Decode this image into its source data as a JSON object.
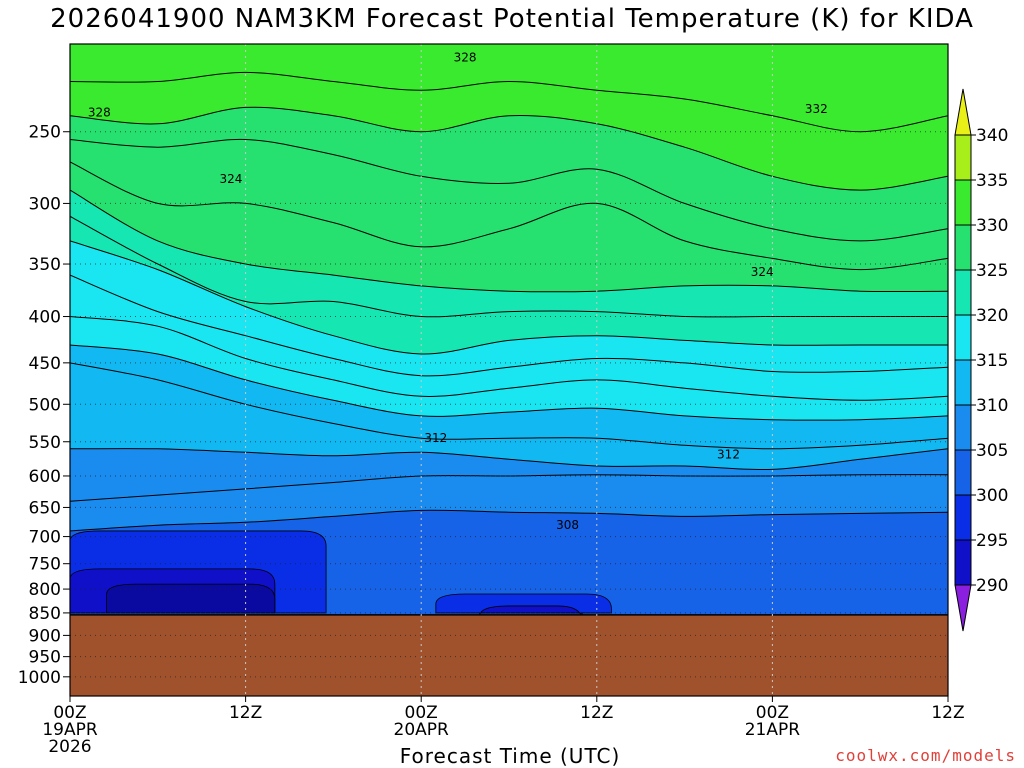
{
  "title": "2026041900 NAM3KM Forecast Potential Temperature (K) for KIDA",
  "credit": "coolwx.com/models",
  "chart_data": {
    "type": "heatmap",
    "title": "2026041900 NAM3KM Forecast Potential Temperature (K) for KIDA",
    "xlabel": "Forecast Time (UTC)",
    "ylabel": "",
    "x_range_hours": [
      0,
      60
    ],
    "y_range_hPa": [
      200,
      1050
    ],
    "y_scale": "log",
    "grid": true,
    "x_ticks": [
      {
        "hour": 0,
        "lines": [
          "00Z",
          "19APR",
          "2026"
        ]
      },
      {
        "hour": 12,
        "lines": [
          "12Z"
        ]
      },
      {
        "hour": 24,
        "lines": [
          "00Z",
          "20APR"
        ]
      },
      {
        "hour": 36,
        "lines": [
          "12Z"
        ]
      },
      {
        "hour": 48,
        "lines": [
          "00Z",
          "21APR"
        ]
      },
      {
        "hour": 60,
        "lines": [
          "12Z"
        ]
      }
    ],
    "y_ticks": [
      250,
      300,
      350,
      400,
      450,
      500,
      550,
      600,
      650,
      700,
      750,
      800,
      850,
      900,
      950,
      1000
    ],
    "colorbar": {
      "levels": [
        290,
        295,
        300,
        305,
        310,
        315,
        320,
        325,
        330,
        335,
        340
      ],
      "labels": [
        "290",
        "295",
        "300",
        "305",
        "310",
        "315",
        "320",
        "325",
        "330",
        "335",
        "340"
      ],
      "colors": [
        "#8a1fe0",
        "#1010c8",
        "#0a2ee6",
        "#1763e8",
        "#1a8cf0",
        "#12b8f2",
        "#19e6f0",
        "#16e6b2",
        "#26e070",
        "#3aea2e",
        "#a8ee1a",
        "#e8f018"
      ]
    },
    "terrain": {
      "pressure_hPa": 850,
      "color": "#a0522d"
    },
    "contour_labels": [
      {
        "text": "328",
        "hour": 27.0,
        "p": 207
      },
      {
        "text": "328",
        "hour": 2.0,
        "p": 238
      },
      {
        "text": "324",
        "hour": 11.0,
        "p": 282
      },
      {
        "text": "332",
        "hour": 51.0,
        "p": 236
      },
      {
        "text": "324",
        "hour": 47.3,
        "p": 357
      },
      {
        "text": "312",
        "hour": 25.0,
        "p": 545
      },
      {
        "text": "312",
        "hour": 45.0,
        "p": 568
      },
      {
        "text": "308",
        "hour": 34.0,
        "p": 680
      }
    ],
    "isentropes": [
      {
        "theta": 306,
        "pts": [
          [
            0,
            690
          ],
          [
            6,
            680
          ],
          [
            12,
            675
          ],
          [
            18,
            665
          ],
          [
            24,
            655
          ],
          [
            30,
            658
          ],
          [
            36,
            660
          ],
          [
            42,
            665
          ],
          [
            48,
            662
          ],
          [
            54,
            660
          ],
          [
            60,
            658
          ]
        ]
      },
      {
        "theta": 308,
        "pts": [
          [
            0,
            640
          ],
          [
            6,
            630
          ],
          [
            12,
            620
          ],
          [
            18,
            610
          ],
          [
            24,
            600
          ],
          [
            30,
            600
          ],
          [
            36,
            598
          ],
          [
            42,
            600
          ],
          [
            48,
            600
          ],
          [
            54,
            598
          ],
          [
            60,
            598
          ]
        ]
      },
      {
        "theta": 310,
        "pts": [
          [
            0,
            560
          ],
          [
            6,
            560
          ],
          [
            12,
            565
          ],
          [
            18,
            570
          ],
          [
            24,
            565
          ],
          [
            30,
            575
          ],
          [
            36,
            585
          ],
          [
            42,
            585
          ],
          [
            48,
            590
          ],
          [
            54,
            575
          ],
          [
            60,
            560
          ]
        ]
      },
      {
        "theta": 312,
        "pts": [
          [
            0,
            450
          ],
          [
            6,
            470
          ],
          [
            12,
            500
          ],
          [
            18,
            525
          ],
          [
            24,
            545
          ],
          [
            30,
            545
          ],
          [
            36,
            545
          ],
          [
            42,
            555
          ],
          [
            48,
            560
          ],
          [
            54,
            555
          ],
          [
            60,
            545
          ]
        ]
      },
      {
        "theta": 314,
        "pts": [
          [
            0,
            430
          ],
          [
            6,
            440
          ],
          [
            12,
            470
          ],
          [
            18,
            495
          ],
          [
            24,
            515
          ],
          [
            30,
            510
          ],
          [
            36,
            505
          ],
          [
            42,
            515
          ],
          [
            48,
            520
          ],
          [
            54,
            520
          ],
          [
            60,
            515
          ]
        ]
      },
      {
        "theta": 316,
        "pts": [
          [
            0,
            400
          ],
          [
            6,
            410
          ],
          [
            12,
            445
          ],
          [
            18,
            470
          ],
          [
            24,
            490
          ],
          [
            30,
            480
          ],
          [
            36,
            470
          ],
          [
            42,
            480
          ],
          [
            48,
            490
          ],
          [
            54,
            495
          ],
          [
            60,
            490
          ]
        ]
      },
      {
        "theta": 318,
        "pts": [
          [
            0,
            360
          ],
          [
            6,
            395
          ],
          [
            12,
            420
          ],
          [
            18,
            445
          ],
          [
            24,
            465
          ],
          [
            30,
            455
          ],
          [
            36,
            445
          ],
          [
            42,
            450
          ],
          [
            48,
            460
          ],
          [
            54,
            460
          ],
          [
            60,
            455
          ]
        ]
      },
      {
        "theta": 320,
        "pts": [
          [
            0,
            330
          ],
          [
            6,
            355
          ],
          [
            12,
            390
          ],
          [
            18,
            420
          ],
          [
            24,
            440
          ],
          [
            30,
            425
          ],
          [
            36,
            420
          ],
          [
            42,
            425
          ],
          [
            48,
            430
          ],
          [
            54,
            430
          ],
          [
            60,
            430
          ]
        ]
      },
      {
        "theta": 322,
        "pts": [
          [
            0,
            310
          ],
          [
            6,
            350
          ],
          [
            12,
            385
          ],
          [
            18,
            385
          ],
          [
            24,
            400
          ],
          [
            30,
            395
          ],
          [
            36,
            395
          ],
          [
            42,
            400
          ],
          [
            48,
            400
          ],
          [
            54,
            400
          ],
          [
            60,
            400
          ]
        ]
      },
      {
        "theta": 324,
        "pts": [
          [
            0,
            290
          ],
          [
            6,
            330
          ],
          [
            12,
            350
          ],
          [
            18,
            360
          ],
          [
            24,
            370
          ],
          [
            30,
            375
          ],
          [
            36,
            375
          ],
          [
            42,
            370
          ],
          [
            48,
            370
          ],
          [
            54,
            375
          ],
          [
            60,
            375
          ]
        ]
      },
      {
        "theta": 326,
        "pts": [
          [
            0,
            270
          ],
          [
            6,
            300
          ],
          [
            12,
            300
          ],
          [
            18,
            315
          ],
          [
            24,
            335
          ],
          [
            30,
            320
          ],
          [
            36,
            300
          ],
          [
            42,
            330
          ],
          [
            48,
            345
          ],
          [
            54,
            355
          ],
          [
            60,
            345
          ]
        ]
      },
      {
        "theta": 328,
        "pts": [
          [
            0,
            255
          ],
          [
            6,
            260
          ],
          [
            12,
            255
          ],
          [
            18,
            265
          ],
          [
            24,
            280
          ],
          [
            30,
            285
          ],
          [
            36,
            275
          ],
          [
            42,
            300
          ],
          [
            48,
            320
          ],
          [
            54,
            330
          ],
          [
            60,
            320
          ]
        ]
      },
      {
        "theta": 330,
        "pts": [
          [
            0,
            240
          ],
          [
            6,
            245
          ],
          [
            12,
            235
          ],
          [
            18,
            240
          ],
          [
            24,
            250
          ],
          [
            30,
            240
          ],
          [
            36,
            245
          ],
          [
            42,
            260
          ],
          [
            48,
            280
          ],
          [
            54,
            290
          ],
          [
            60,
            280
          ]
        ]
      },
      {
        "theta": 332,
        "pts": [
          [
            0,
            220
          ],
          [
            6,
            220
          ],
          [
            12,
            215
          ],
          [
            18,
            220
          ],
          [
            24,
            225
          ],
          [
            30,
            220
          ],
          [
            36,
            225
          ],
          [
            42,
            230
          ],
          [
            48,
            240
          ],
          [
            54,
            250
          ],
          [
            60,
            240
          ]
        ]
      }
    ]
  }
}
